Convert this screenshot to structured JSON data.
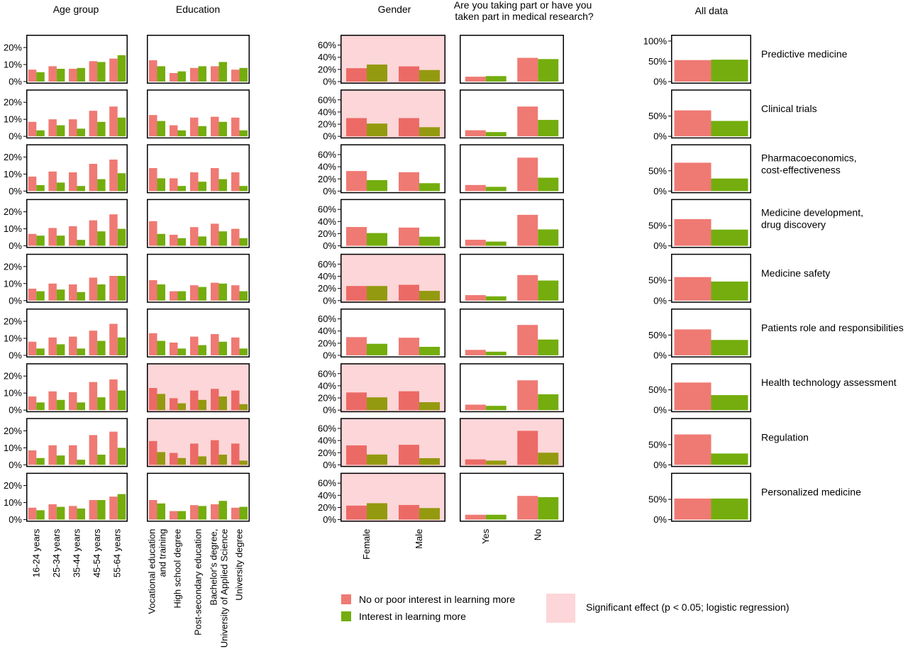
{
  "colors": {
    "no_interest": "#ef7a73",
    "interest": "#74ad0d",
    "significant_bg": "#fcd6d8",
    "panel_border": "#000000"
  },
  "column_titles": {
    "age": "Age group",
    "edu": "Education",
    "gender": "Gender",
    "research": "Are you taking part or have you taken part in medical research?",
    "all": "All data"
  },
  "legend": {
    "no_interest": "No or poor interest in learning more",
    "interest": "Interest in learning more",
    "significant": "Significant effect (p < 0.05; logistic regression)"
  },
  "chart_data": {
    "type": "bar",
    "layout": "faceted grid, rows = topics, columns = respondent groups",
    "series_names": [
      "No or poor interest in learning more",
      "Interest in learning more"
    ],
    "columns": [
      {
        "key": "age",
        "categories": [
          "16-24 years",
          "25-34 years",
          "35-44 years",
          "45-54 years",
          "55-64 years"
        ],
        "ylim": [
          0,
          0.25
        ],
        "yticks": [
          {
            "v": 0,
            "label": "0%"
          },
          {
            "v": 0.1,
            "label": "10%"
          },
          {
            "v": 0.2,
            "label": "20%"
          }
        ]
      },
      {
        "key": "edu",
        "categories": [
          "Vocational education and training",
          "High school degree",
          "Post-secondary education",
          "Bachelor's degree, University of Applied Science",
          "University degree"
        ],
        "ylim": [
          0,
          0.25
        ],
        "yticks": []
      },
      {
        "key": "gender",
        "categories": [
          "Female",
          "Male"
        ],
        "ylim": [
          0,
          0.7
        ],
        "yticks": [
          {
            "v": 0,
            "label": "0%"
          },
          {
            "v": 0.2,
            "label": "20%"
          },
          {
            "v": 0.4,
            "label": "40%"
          },
          {
            "v": 0.6,
            "label": "60%"
          }
        ]
      },
      {
        "key": "research",
        "categories": [
          "Yes",
          "No"
        ],
        "ylim": [
          0,
          0.7
        ],
        "yticks": []
      },
      {
        "key": "all",
        "categories": [
          "",
          ""
        ],
        "ylim": [
          0,
          1.05
        ],
        "yticks": [
          {
            "v": 0,
            "label": "0%"
          },
          {
            "v": 0.5,
            "label": "50%"
          }
        ]
      }
    ],
    "rows": [
      {
        "label": "Predictive medicine",
        "all_yticks_extra": [
          {
            "v": 1.0,
            "label": "100%"
          }
        ],
        "significant": {
          "age": false,
          "edu": false,
          "gender": true,
          "research": false
        },
        "age": {
          "no": [
            0.07,
            0.09,
            0.075,
            0.12,
            0.135
          ],
          "yes": [
            0.055,
            0.075,
            0.08,
            0.115,
            0.155
          ]
        },
        "edu": {
          "no": [
            0.125,
            0.05,
            0.08,
            0.09,
            0.07
          ],
          "yes": [
            0.09,
            0.06,
            0.09,
            0.115,
            0.08
          ]
        },
        "gender": {
          "no": [
            0.22,
            0.25
          ],
          "yes": [
            0.28,
            0.19
          ]
        },
        "research": {
          "no": [
            0.08,
            0.39
          ],
          "yes": [
            0.09,
            0.37
          ]
        },
        "all": {
          "no": [
            0.53
          ],
          "yes": [
            0.54
          ]
        }
      },
      {
        "label": "Clinical trials",
        "all_yticks_extra": [],
        "significant": {
          "age": false,
          "edu": false,
          "gender": true,
          "research": false
        },
        "age": {
          "no": [
            0.085,
            0.1,
            0.1,
            0.15,
            0.175
          ],
          "yes": [
            0.035,
            0.065,
            0.045,
            0.085,
            0.11
          ]
        },
        "edu": {
          "no": [
            0.125,
            0.065,
            0.11,
            0.115,
            0.11
          ],
          "yes": [
            0.09,
            0.035,
            0.06,
            0.085,
            0.035
          ]
        },
        "gender": {
          "no": [
            0.3,
            0.3
          ],
          "yes": [
            0.21,
            0.15
          ]
        },
        "research": {
          "no": [
            0.1,
            0.49
          ],
          "yes": [
            0.07,
            0.27
          ]
        },
        "all": {
          "no": [
            0.64
          ],
          "yes": [
            0.38
          ]
        }
      },
      {
        "label": "Pharmacoeconomics, cost-effectiveness",
        "all_yticks_extra": [],
        "significant": {
          "age": false,
          "edu": false,
          "gender": false,
          "research": false
        },
        "age": {
          "no": [
            0.085,
            0.115,
            0.11,
            0.16,
            0.185
          ],
          "yes": [
            0.035,
            0.05,
            0.03,
            0.07,
            0.105
          ]
        },
        "edu": {
          "no": [
            0.135,
            0.075,
            0.11,
            0.135,
            0.11
          ],
          "yes": [
            0.075,
            0.03,
            0.055,
            0.07,
            0.03
          ]
        },
        "gender": {
          "no": [
            0.33,
            0.31
          ],
          "yes": [
            0.18,
            0.13
          ]
        },
        "research": {
          "no": [
            0.1,
            0.55
          ],
          "yes": [
            0.07,
            0.22
          ]
        },
        "all": {
          "no": [
            0.7
          ],
          "yes": [
            0.31
          ]
        }
      },
      {
        "label": "Medicine development, drug discovery",
        "all_yticks_extra": [],
        "significant": {
          "age": false,
          "edu": false,
          "gender": false,
          "research": false
        },
        "age": {
          "no": [
            0.07,
            0.105,
            0.115,
            0.15,
            0.185
          ],
          "yes": [
            0.06,
            0.06,
            0.035,
            0.085,
            0.1
          ]
        },
        "edu": {
          "no": [
            0.145,
            0.065,
            0.11,
            0.13,
            0.1
          ],
          "yes": [
            0.07,
            0.045,
            0.055,
            0.085,
            0.045
          ]
        },
        "gender": {
          "no": [
            0.31,
            0.3
          ],
          "yes": [
            0.21,
            0.15
          ]
        },
        "research": {
          "no": [
            0.1,
            0.51
          ],
          "yes": [
            0.07,
            0.27
          ]
        },
        "all": {
          "no": [
            0.66
          ],
          "yes": [
            0.4
          ]
        }
      },
      {
        "label": "Medicine safety",
        "all_yticks_extra": [],
        "significant": {
          "age": false,
          "edu": false,
          "gender": true,
          "research": false
        },
        "age": {
          "no": [
            0.07,
            0.1,
            0.095,
            0.135,
            0.145
          ],
          "yes": [
            0.055,
            0.065,
            0.05,
            0.095,
            0.145
          ]
        },
        "edu": {
          "no": [
            0.12,
            0.055,
            0.09,
            0.105,
            0.09
          ],
          "yes": [
            0.095,
            0.055,
            0.08,
            0.1,
            0.055
          ]
        },
        "gender": {
          "no": [
            0.24,
            0.26
          ],
          "yes": [
            0.24,
            0.16
          ]
        },
        "research": {
          "no": [
            0.09,
            0.42
          ],
          "yes": [
            0.07,
            0.33
          ]
        },
        "all": {
          "no": [
            0.58
          ],
          "yes": [
            0.47
          ]
        }
      },
      {
        "label": "Patients role and responsibilities",
        "all_yticks_extra": [],
        "significant": {
          "age": false,
          "edu": false,
          "gender": false,
          "research": false
        },
        "age": {
          "no": [
            0.08,
            0.105,
            0.11,
            0.145,
            0.185
          ],
          "yes": [
            0.04,
            0.065,
            0.04,
            0.085,
            0.105
          ]
        },
        "edu": {
          "no": [
            0.13,
            0.075,
            0.11,
            0.125,
            0.105
          ],
          "yes": [
            0.085,
            0.04,
            0.06,
            0.08,
            0.04
          ]
        },
        "gender": {
          "no": [
            0.3,
            0.29
          ],
          "yes": [
            0.19,
            0.14
          ]
        },
        "research": {
          "no": [
            0.09,
            0.5
          ],
          "yes": [
            0.06,
            0.26
          ]
        },
        "all": {
          "no": [
            0.64
          ],
          "yes": [
            0.38
          ]
        }
      },
      {
        "label": "Health technology assessment",
        "all_yticks_extra": [],
        "significant": {
          "age": false,
          "edu": true,
          "gender": true,
          "research": false
        },
        "age": {
          "no": [
            0.08,
            0.11,
            0.105,
            0.165,
            0.18
          ],
          "yes": [
            0.045,
            0.06,
            0.045,
            0.075,
            0.115
          ]
        },
        "edu": {
          "no": [
            0.13,
            0.07,
            0.115,
            0.125,
            0.115
          ],
          "yes": [
            0.095,
            0.04,
            0.06,
            0.08,
            0.035
          ]
        },
        "gender": {
          "no": [
            0.29,
            0.31
          ],
          "yes": [
            0.21,
            0.13
          ]
        },
        "research": {
          "no": [
            0.09,
            0.49
          ],
          "yes": [
            0.07,
            0.26
          ]
        },
        "all": {
          "no": [
            0.68
          ],
          "yes": [
            0.37
          ]
        }
      },
      {
        "label": "Regulation",
        "all_yticks_extra": [],
        "significant": {
          "age": false,
          "edu": true,
          "gender": true,
          "research": true
        },
        "age": {
          "no": [
            0.085,
            0.115,
            0.115,
            0.175,
            0.195
          ],
          "yes": [
            0.04,
            0.055,
            0.03,
            0.06,
            0.1
          ]
        },
        "edu": {
          "no": [
            0.14,
            0.07,
            0.125,
            0.145,
            0.125
          ],
          "yes": [
            0.075,
            0.04,
            0.05,
            0.06,
            0.025
          ]
        },
        "gender": {
          "no": [
            0.32,
            0.33
          ],
          "yes": [
            0.17,
            0.11
          ]
        },
        "research": {
          "no": [
            0.09,
            0.56
          ],
          "yes": [
            0.07,
            0.2
          ]
        },
        "all": {
          "no": [
            0.75
          ],
          "yes": [
            0.28
          ]
        }
      },
      {
        "label": "Personalized medicine",
        "all_yticks_extra": [],
        "significant": {
          "age": false,
          "edu": false,
          "gender": true,
          "research": false
        },
        "age": {
          "no": [
            0.07,
            0.09,
            0.08,
            0.115,
            0.135
          ],
          "yes": [
            0.055,
            0.075,
            0.065,
            0.115,
            0.15
          ]
        },
        "edu": {
          "no": [
            0.115,
            0.05,
            0.085,
            0.09,
            0.07
          ],
          "yes": [
            0.095,
            0.05,
            0.08,
            0.11,
            0.075
          ]
        },
        "gender": {
          "no": [
            0.23,
            0.24
          ],
          "yes": [
            0.27,
            0.19
          ]
        },
        "research": {
          "no": [
            0.08,
            0.39
          ],
          "yes": [
            0.08,
            0.37
          ]
        },
        "all": {
          "no": [
            0.52
          ],
          "yes": [
            0.52
          ]
        }
      }
    ]
  }
}
